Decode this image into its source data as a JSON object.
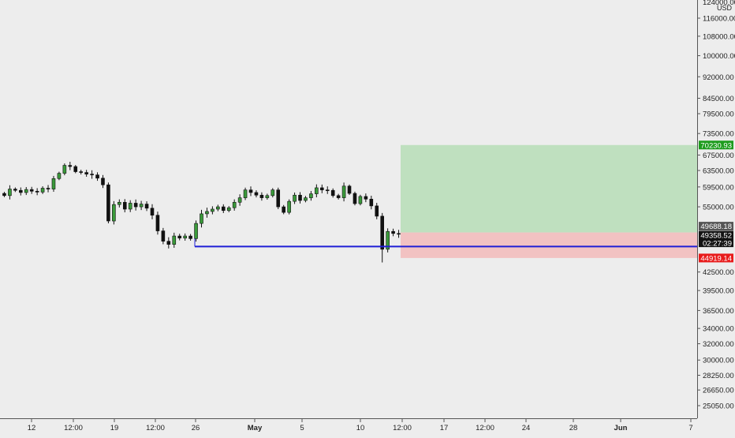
{
  "chart_data": {
    "type": "candlestick",
    "y_scale": "log",
    "currency": "USD",
    "grid": false,
    "y_ticks": [
      "25050.00",
      "26650.00",
      "28250.00",
      "30000.00",
      "32000.00",
      "34000.00",
      "36500.00",
      "39500.00",
      "42500.00",
      "55000.00",
      "59500.00",
      "63500.00",
      "67500.00",
      "73500.00",
      "79500.00",
      "84500.00",
      "92000.00",
      "100000.00",
      "108000.00",
      "116000.00"
    ],
    "y_tick_values": [
      25050,
      26650,
      28250,
      30000,
      32000,
      34000,
      36500,
      39500,
      42500,
      55000,
      59500,
      63500,
      67500,
      73500,
      79500,
      84500,
      92000,
      100000,
      108000,
      116000
    ],
    "y_top_partial": "124000.00",
    "x_ticks": [
      {
        "label": "12",
        "bold": false
      },
      {
        "label": "12:00",
        "bold": false
      },
      {
        "label": "19",
        "bold": false
      },
      {
        "label": "12:00",
        "bold": false
      },
      {
        "label": "26",
        "bold": false
      },
      {
        "label": "May",
        "bold": true
      },
      {
        "label": "5",
        "bold": false
      },
      {
        "label": "10",
        "bold": false
      },
      {
        "label": "12:00",
        "bold": false
      },
      {
        "label": "17",
        "bold": false
      },
      {
        "label": "12:00",
        "bold": false
      },
      {
        "label": "24",
        "bold": false
      },
      {
        "label": "28",
        "bold": false
      },
      {
        "label": "Jun",
        "bold": true
      },
      {
        "label": "7",
        "bold": false
      }
    ],
    "price_labels": [
      {
        "name": "target",
        "value": "70230.93",
        "color": "#1e9c1e"
      },
      {
        "name": "entry",
        "value": "49688.18",
        "color": "#555555"
      },
      {
        "name": "last",
        "value": "49358.52",
        "color": "#131313"
      },
      {
        "name": "countdown",
        "value": "02:27:39",
        "color": "#131313"
      },
      {
        "name": "stop",
        "value": "44919.14",
        "color": "#e81a1a"
      }
    ],
    "support_line": {
      "price": 47000,
      "color": "#1f1fd6"
    },
    "position": {
      "entry": 49688.18,
      "target": 70230.93,
      "stop": 44919.14,
      "profit_color": "#bfe0bf",
      "loss_color": "#f2c2c2"
    },
    "price_path": [
      58000,
      57500,
      59000,
      58700,
      58200,
      58900,
      58500,
      58300,
      59200,
      59000,
      61500,
      62800,
      64800,
      64500,
      63200,
      63000,
      62600,
      62400,
      61600,
      60000,
      52000,
      55500,
      56000,
      54500,
      55800,
      55000,
      55600,
      54700,
      53200,
      50000,
      48000,
      47400,
      49000,
      48600,
      49000,
      48500,
      51500,
      53500,
      54000,
      54500,
      55000,
      54200,
      54800,
      56000,
      57000,
      58800,
      58200,
      57600,
      57000,
      57500,
      58800,
      55000,
      53800,
      56200,
      57600,
      56400,
      57000,
      57900,
      59300,
      58800,
      58700,
      57500,
      57000,
      59700,
      58000,
      55700,
      57300,
      56700,
      55200,
      53000,
      46500,
      49900,
      49500,
      49358
    ]
  }
}
